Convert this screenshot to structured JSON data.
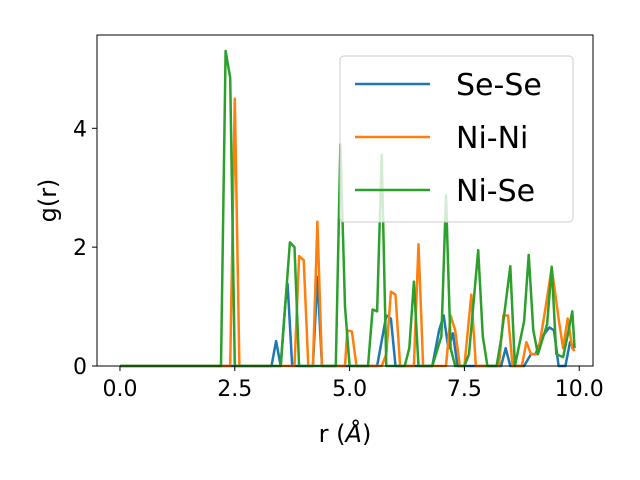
{
  "chart_data": {
    "type": "line",
    "title": "",
    "xlabel": "r (",
    "xlabel_unit": "Å",
    "xlabel_close": ")",
    "ylabel": "g(r)",
    "xlim": [
      -0.5,
      10.3
    ],
    "ylim": [
      0,
      5.57
    ],
    "xticks": [
      0.0,
      2.5,
      5.0,
      7.5,
      10.0
    ],
    "xtick_labels": [
      "0.0",
      "2.5",
      "5.0",
      "7.5",
      "10.0"
    ],
    "yticks": [
      0,
      2,
      4
    ],
    "ytick_labels": [
      "0",
      "2",
      "4"
    ],
    "grid": false,
    "legend_position": "top-right",
    "series": [
      {
        "name": "Se-Se",
        "color": "#1f77b4",
        "points": [
          [
            0,
            0
          ],
          [
            3.3,
            0
          ],
          [
            3.4,
            0.42
          ],
          [
            3.5,
            0
          ],
          [
            3.6,
            1.05
          ],
          [
            3.65,
            1.38
          ],
          [
            3.75,
            0
          ],
          [
            4.2,
            0
          ],
          [
            4.3,
            1.5
          ],
          [
            4.4,
            0
          ],
          [
            5.6,
            0
          ],
          [
            5.8,
            0.85
          ],
          [
            5.9,
            0.8
          ],
          [
            6.0,
            0
          ],
          [
            6.8,
            0
          ],
          [
            6.95,
            0.6
          ],
          [
            7.05,
            0.85
          ],
          [
            7.15,
            0.3
          ],
          [
            7.25,
            0.55
          ],
          [
            7.35,
            0
          ],
          [
            8.3,
            0
          ],
          [
            8.4,
            0.3
          ],
          [
            8.5,
            0
          ],
          [
            8.8,
            0
          ],
          [
            8.95,
            0.2
          ],
          [
            9.05,
            0.2
          ],
          [
            9.2,
            0.5
          ],
          [
            9.35,
            0.65
          ],
          [
            9.45,
            0.6
          ],
          [
            9.55,
            0
          ],
          [
            9.7,
            0
          ],
          [
            9.8,
            0.4
          ],
          [
            9.9,
            0.3
          ]
        ]
      },
      {
        "name": "Ni-Ni",
        "color": "#ff7f0e",
        "points": [
          [
            0,
            0
          ],
          [
            2.4,
            0
          ],
          [
            2.5,
            4.5
          ],
          [
            2.6,
            0
          ],
          [
            3.8,
            0
          ],
          [
            3.9,
            1.85
          ],
          [
            4.0,
            1.78
          ],
          [
            4.1,
            0
          ],
          [
            4.2,
            0
          ],
          [
            4.3,
            2.43
          ],
          [
            4.4,
            0
          ],
          [
            4.9,
            0
          ],
          [
            4.95,
            0.6
          ],
          [
            5.05,
            0.58
          ],
          [
            5.15,
            0
          ],
          [
            5.7,
            0
          ],
          [
            5.8,
            0.2
          ],
          [
            5.9,
            1.25
          ],
          [
            6.0,
            1.2
          ],
          [
            6.1,
            0
          ],
          [
            6.4,
            0
          ],
          [
            6.5,
            2.05
          ],
          [
            6.6,
            0
          ],
          [
            7.1,
            0
          ],
          [
            7.2,
            0.85
          ],
          [
            7.3,
            0.6
          ],
          [
            7.4,
            0
          ],
          [
            7.5,
            0
          ],
          [
            7.65,
            1.2
          ],
          [
            7.75,
            0
          ],
          [
            8.25,
            0
          ],
          [
            8.35,
            0.85
          ],
          [
            8.45,
            0.85
          ],
          [
            8.55,
            0
          ],
          [
            8.75,
            0
          ],
          [
            8.85,
            0.4
          ],
          [
            8.95,
            0.2
          ],
          [
            9.1,
            0.2
          ],
          [
            9.25,
            0.9
          ],
          [
            9.4,
            1.65
          ],
          [
            9.55,
            0.8
          ],
          [
            9.65,
            0.3
          ],
          [
            9.75,
            0.8
          ],
          [
            9.85,
            0.3
          ],
          [
            9.9,
            0.25
          ]
        ]
      },
      {
        "name": "Ni-Se",
        "color": "#2ca02c",
        "points": [
          [
            0,
            0
          ],
          [
            2.2,
            0
          ],
          [
            2.3,
            5.3
          ],
          [
            2.4,
            4.85
          ],
          [
            2.5,
            0
          ],
          [
            3.5,
            0
          ],
          [
            3.7,
            2.08
          ],
          [
            3.8,
            2.0
          ],
          [
            3.9,
            0
          ],
          [
            4.7,
            0
          ],
          [
            4.8,
            3.73
          ],
          [
            4.9,
            1.0
          ],
          [
            5.0,
            0
          ],
          [
            5.4,
            0
          ],
          [
            5.5,
            0.95
          ],
          [
            5.6,
            0.92
          ],
          [
            5.7,
            3.55
          ],
          [
            5.8,
            0
          ],
          [
            6.2,
            0
          ],
          [
            6.3,
            0.3
          ],
          [
            6.4,
            1.42
          ],
          [
            6.5,
            0
          ],
          [
            6.8,
            0
          ],
          [
            7.0,
            0.5
          ],
          [
            7.1,
            2.87
          ],
          [
            7.2,
            0.3
          ],
          [
            7.3,
            0
          ],
          [
            7.5,
            0
          ],
          [
            7.6,
            0.2
          ],
          [
            7.8,
            1.95
          ],
          [
            7.9,
            0.5
          ],
          [
            8.0,
            0
          ],
          [
            8.2,
            0
          ],
          [
            8.3,
            0.45
          ],
          [
            8.5,
            1.68
          ],
          [
            8.6,
            0
          ],
          [
            8.8,
            0.75
          ],
          [
            8.9,
            1.87
          ],
          [
            9.0,
            0.6
          ],
          [
            9.1,
            0.2
          ],
          [
            9.3,
            0.7
          ],
          [
            9.4,
            1.67
          ],
          [
            9.5,
            0.2
          ],
          [
            9.65,
            0.15
          ],
          [
            9.75,
            0.52
          ],
          [
            9.85,
            0.92
          ],
          [
            9.9,
            0.3
          ]
        ]
      }
    ]
  }
}
